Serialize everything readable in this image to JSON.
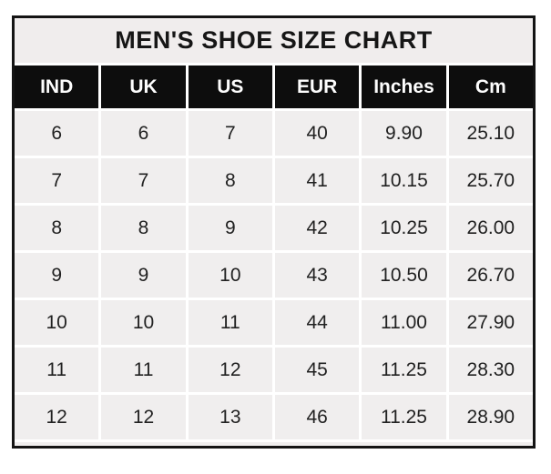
{
  "chart_data": {
    "type": "table",
    "title": "MEN'S SHOE SIZE CHART",
    "columns": [
      "IND",
      "UK",
      "US",
      "EUR",
      "Inches",
      "Cm"
    ],
    "rows": [
      [
        "6",
        "6",
        "7",
        "40",
        "9.90",
        "25.10"
      ],
      [
        "7",
        "7",
        "8",
        "41",
        "10.15",
        "25.70"
      ],
      [
        "8",
        "8",
        "9",
        "42",
        "10.25",
        "26.00"
      ],
      [
        "9",
        "9",
        "10",
        "43",
        "10.50",
        "26.70"
      ],
      [
        "10",
        "10",
        "11",
        "44",
        "11.00",
        "27.90"
      ],
      [
        "11",
        "11",
        "12",
        "45",
        "11.25",
        "28.30"
      ],
      [
        "12",
        "12",
        "13",
        "46",
        "11.25",
        "28.90"
      ]
    ]
  },
  "colors": {
    "page_background": "#ffffff",
    "outer_border": "#141414",
    "title_background": "#f0eded",
    "header_background": "#0d0d0d",
    "header_text": "#fdfdfd",
    "cell_background": "#f0eeee",
    "cell_text": "#212121",
    "gridline": "#ffffff"
  }
}
